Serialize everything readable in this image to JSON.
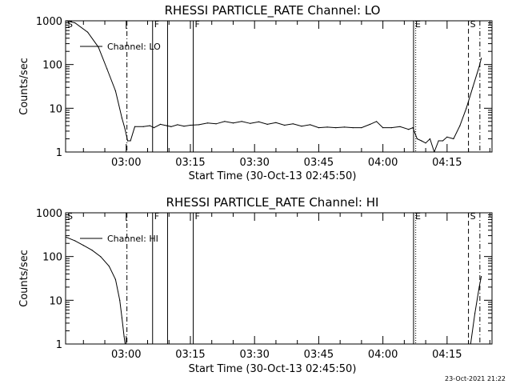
{
  "footer_stamp": "23-Oct-2021 21:22",
  "chart_data": [
    {
      "type": "line",
      "title": "RHESSI PARTICLE_RATE Channel: LO",
      "xlabel": "Start Time (30-Oct-13 02:45:50)",
      "ylabel": "Counts/sec",
      "legend_label": "Channel: LO",
      "legend_position": "top-left",
      "y_scale": "log",
      "ylim": [
        1,
        1000
      ],
      "xlim": [
        "02:45:50",
        "04:25:30"
      ],
      "x_ticks": [
        "03:00",
        "03:15",
        "03:30",
        "03:45",
        "04:00",
        "04:15"
      ],
      "y_ticks": [
        "1",
        "10",
        "100",
        "1000"
      ],
      "markers": [
        {
          "label": "S",
          "time": "02:45:50",
          "style": "solid"
        },
        {
          "label": "",
          "time": "03:00:10",
          "style": "dashdot"
        },
        {
          "label": "F",
          "time": "03:06:10",
          "style": "solid"
        },
        {
          "label": "",
          "time": "03:09:40",
          "style": "solid"
        },
        {
          "label": "F",
          "time": "03:15:40",
          "style": "solid"
        },
        {
          "label": "E",
          "time": "04:07:10",
          "style": "solid"
        },
        {
          "label": "",
          "time": "04:07:40",
          "style": "dotted"
        },
        {
          "label": "S",
          "time": "04:20:00",
          "style": "dashed"
        },
        {
          "label": "",
          "time": "04:22:40",
          "style": "dashdot"
        }
      ],
      "series": [
        {
          "name": "Channel: LO",
          "points": [
            [
              "02:45:50",
              1000
            ],
            [
              "02:48:00",
              900
            ],
            [
              "02:51:00",
              550
            ],
            [
              "02:53:30",
              250
            ],
            [
              "02:55:30",
              80
            ],
            [
              "02:57:30",
              25
            ],
            [
              "02:59:00",
              6
            ],
            [
              "02:59:40",
              3.5
            ],
            [
              "03:00:20",
              1.8
            ],
            [
              "03:01:00",
              1.8
            ],
            [
              "03:02:00",
              3.8
            ],
            [
              "03:04:00",
              3.8
            ],
            [
              "03:05:30",
              4.0
            ],
            [
              "03:06:30",
              3.6
            ],
            [
              "03:08:00",
              4.3
            ],
            [
              "03:09:30",
              4.0
            ],
            [
              "03:10:30",
              3.8
            ],
            [
              "03:12:00",
              4.2
            ],
            [
              "03:13:30",
              3.9
            ],
            [
              "03:15:00",
              4.1
            ],
            [
              "03:17:00",
              4.2
            ],
            [
              "03:19:00",
              4.6
            ],
            [
              "03:21:00",
              4.4
            ],
            [
              "03:23:00",
              5.0
            ],
            [
              "03:25:00",
              4.6
            ],
            [
              "03:27:00",
              5.0
            ],
            [
              "03:29:00",
              4.5
            ],
            [
              "03:31:00",
              4.9
            ],
            [
              "03:33:00",
              4.3
            ],
            [
              "03:35:00",
              4.7
            ],
            [
              "03:37:00",
              4.1
            ],
            [
              "03:39:00",
              4.4
            ],
            [
              "03:41:00",
              3.9
            ],
            [
              "03:43:00",
              4.2
            ],
            [
              "03:45:00",
              3.6
            ],
            [
              "03:47:00",
              3.7
            ],
            [
              "03:49:00",
              3.6
            ],
            [
              "03:51:00",
              3.7
            ],
            [
              "03:53:00",
              3.6
            ],
            [
              "03:55:00",
              3.6
            ],
            [
              "03:57:00",
              4.3
            ],
            [
              "03:58:30",
              5.0
            ],
            [
              "04:00:00",
              3.6
            ],
            [
              "04:02:00",
              3.6
            ],
            [
              "04:04:00",
              3.8
            ],
            [
              "04:06:00",
              3.3
            ],
            [
              "04:07:00",
              3.6
            ],
            [
              "04:08:00",
              2.0
            ],
            [
              "04:09:00",
              1.8
            ],
            [
              "04:10:00",
              1.6
            ],
            [
              "04:11:00",
              2.0
            ],
            [
              "04:12:00",
              1.0
            ],
            [
              "04:13:00",
              1.8
            ],
            [
              "04:14:00",
              1.8
            ],
            [
              "04:15:00",
              2.2
            ],
            [
              "04:16:30",
              2.0
            ],
            [
              "04:18:00",
              4.0
            ],
            [
              "04:19:30",
              10
            ],
            [
              "04:21:00",
              30
            ],
            [
              "04:22:30",
              90
            ],
            [
              "04:23:00",
              140
            ]
          ]
        }
      ]
    },
    {
      "type": "line",
      "title": "RHESSI PARTICLE_RATE Channel: HI",
      "xlabel": "Start Time (30-Oct-13 02:45:50)",
      "ylabel": "Counts/sec",
      "legend_label": "Channel: HI",
      "legend_position": "top-left",
      "y_scale": "log",
      "ylim": [
        1,
        1000
      ],
      "xlim": [
        "02:45:50",
        "04:25:30"
      ],
      "x_ticks": [
        "03:00",
        "03:15",
        "03:30",
        "03:45",
        "04:00",
        "04:15"
      ],
      "y_ticks": [
        "1",
        "10",
        "100",
        "1000"
      ],
      "markers": [
        {
          "label": "S",
          "time": "02:45:50",
          "style": "solid"
        },
        {
          "label": "",
          "time": "03:00:10",
          "style": "dashdot"
        },
        {
          "label": "F",
          "time": "03:06:10",
          "style": "solid"
        },
        {
          "label": "",
          "time": "03:09:40",
          "style": "solid"
        },
        {
          "label": "F",
          "time": "03:15:40",
          "style": "solid"
        },
        {
          "label": "E",
          "time": "04:07:10",
          "style": "solid"
        },
        {
          "label": "",
          "time": "04:07:40",
          "style": "dotted"
        },
        {
          "label": "S",
          "time": "04:20:00",
          "style": "dashed"
        },
        {
          "label": "",
          "time": "04:22:40",
          "style": "dashdot"
        }
      ],
      "series": [
        {
          "name": "Channel: HI",
          "points": [
            [
              "02:45:50",
              280
            ],
            [
              "02:48:00",
              230
            ],
            [
              "02:50:00",
              180
            ],
            [
              "02:52:00",
              140
            ],
            [
              "02:54:00",
              100
            ],
            [
              "02:56:00",
              60
            ],
            [
              "02:57:30",
              30
            ],
            [
              "02:58:30",
              10
            ],
            [
              "02:59:00",
              4
            ],
            [
              "02:59:30",
              1.5
            ],
            [
              "02:59:45",
              1
            ]
          ]
        },
        {
          "name": "Channel: HI",
          "points": [
            [
              "04:20:30",
              1
            ],
            [
              "04:21:30",
              5
            ],
            [
              "04:22:30",
              20
            ],
            [
              "04:23:00",
              35
            ]
          ]
        }
      ]
    }
  ]
}
